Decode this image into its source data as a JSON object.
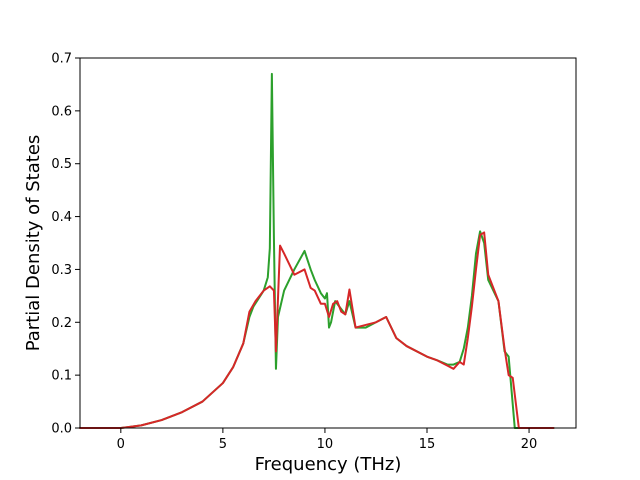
{
  "chart_data": {
    "type": "line",
    "title": "",
    "xlabel": "Frequency (THz)",
    "ylabel": "Partial Density of States",
    "xlim": [
      -2.0,
      22.3
    ],
    "ylim": [
      0.0,
      0.7
    ],
    "xticks": [
      0,
      5,
      10,
      15,
      20
    ],
    "yticks": [
      0.0,
      0.1,
      0.2,
      0.3,
      0.4,
      0.5,
      0.6,
      0.7
    ],
    "xtick_labels": [
      "0",
      "5",
      "10",
      "15",
      "20"
    ],
    "ytick_labels": [
      "0.0",
      "0.1",
      "0.2",
      "0.3",
      "0.4",
      "0.5",
      "0.6",
      "0.7"
    ],
    "grid": false,
    "series": [
      {
        "color": "#2ca02c",
        "x": [
          -2.0,
          0.0,
          1.0,
          2.0,
          3.0,
          4.0,
          5.0,
          5.5,
          6.0,
          6.3,
          6.5,
          7.0,
          7.2,
          7.3,
          7.4,
          7.5,
          7.6,
          7.7,
          8.0,
          8.5,
          9.0,
          9.3,
          9.5,
          9.8,
          10.0,
          10.1,
          10.2,
          10.3,
          10.5,
          10.8,
          11.0,
          11.2,
          11.5,
          12.0,
          12.5,
          13.0,
          13.5,
          14.0,
          15.0,
          15.5,
          16.0,
          16.3,
          16.6,
          16.8,
          17.0,
          17.2,
          17.4,
          17.6,
          17.8,
          18.0,
          18.5,
          18.8,
          19.0,
          19.3,
          19.5,
          20.0,
          21.2
        ],
        "y": [
          0.0,
          0.0,
          0.005,
          0.015,
          0.03,
          0.05,
          0.085,
          0.115,
          0.16,
          0.21,
          0.23,
          0.26,
          0.285,
          0.34,
          0.67,
          0.36,
          0.112,
          0.21,
          0.26,
          0.3,
          0.335,
          0.3,
          0.28,
          0.255,
          0.245,
          0.255,
          0.19,
          0.2,
          0.24,
          0.225,
          0.215,
          0.24,
          0.19,
          0.19,
          0.2,
          0.21,
          0.17,
          0.155,
          0.135,
          0.128,
          0.12,
          0.12,
          0.125,
          0.15,
          0.19,
          0.25,
          0.33,
          0.372,
          0.35,
          0.28,
          0.24,
          0.145,
          0.135,
          0.0,
          0.0,
          0.0,
          0.0
        ]
      },
      {
        "color": "#d62728",
        "x": [
          -2.0,
          0.0,
          1.0,
          2.0,
          3.0,
          4.0,
          5.0,
          5.5,
          6.0,
          6.3,
          6.6,
          7.0,
          7.3,
          7.5,
          7.6,
          7.8,
          8.0,
          8.5,
          9.0,
          9.3,
          9.5,
          9.8,
          10.0,
          10.2,
          10.4,
          10.6,
          10.8,
          11.0,
          11.2,
          11.5,
          12.0,
          12.5,
          13.0,
          13.5,
          14.0,
          15.0,
          15.5,
          16.0,
          16.3,
          16.6,
          16.8,
          17.0,
          17.2,
          17.4,
          17.6,
          17.8,
          18.0,
          18.5,
          18.8,
          19.0,
          19.2,
          19.5,
          20.0,
          21.2
        ],
        "y": [
          0.0,
          0.0,
          0.005,
          0.015,
          0.03,
          0.05,
          0.085,
          0.115,
          0.16,
          0.22,
          0.24,
          0.26,
          0.268,
          0.26,
          0.145,
          0.345,
          0.33,
          0.29,
          0.3,
          0.265,
          0.26,
          0.235,
          0.235,
          0.21,
          0.235,
          0.24,
          0.22,
          0.215,
          0.262,
          0.19,
          0.195,
          0.2,
          0.21,
          0.17,
          0.155,
          0.135,
          0.128,
          0.118,
          0.112,
          0.125,
          0.12,
          0.17,
          0.23,
          0.3,
          0.365,
          0.37,
          0.29,
          0.24,
          0.15,
          0.1,
          0.095,
          0.0,
          0.0,
          0.0
        ]
      }
    ]
  }
}
